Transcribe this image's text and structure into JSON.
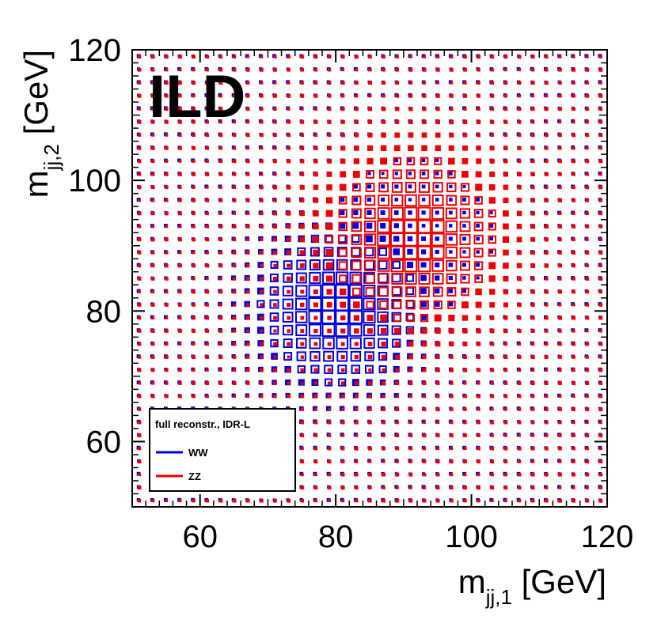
{
  "chart_data": {
    "type": "heatmap",
    "title": "",
    "label": "ILD",
    "xlabel": {
      "main": "m",
      "sub": "jj,1",
      "unit": " [GeV]"
    },
    "ylabel": {
      "main": "m",
      "sub": "jj,2",
      "unit": " [GeV]"
    },
    "xlim": [
      50,
      120
    ],
    "ylim": [
      50,
      120
    ],
    "xticks": [
      60,
      80,
      100,
      120
    ],
    "yticks": [
      60,
      80,
      100,
      120
    ],
    "bin_width": 2,
    "grid": false,
    "legend": {
      "title": "full reconstr., IDR-L",
      "placement": "bottom-left",
      "entries": [
        {
          "name": "WW",
          "color": "#0000dd"
        },
        {
          "name": "ZZ",
          "color": "#ee0000"
        }
      ]
    },
    "series": [
      {
        "name": "WW",
        "color": "#0000dd",
        "peak": [
          80.4,
          80.4
        ],
        "width": 6.5,
        "max_weight": 1.0
      },
      {
        "name": "ZZ",
        "color": "#ee0000",
        "peak": [
          91.2,
          91.2
        ],
        "width": 7.0,
        "max_weight": 1.0
      }
    ]
  }
}
